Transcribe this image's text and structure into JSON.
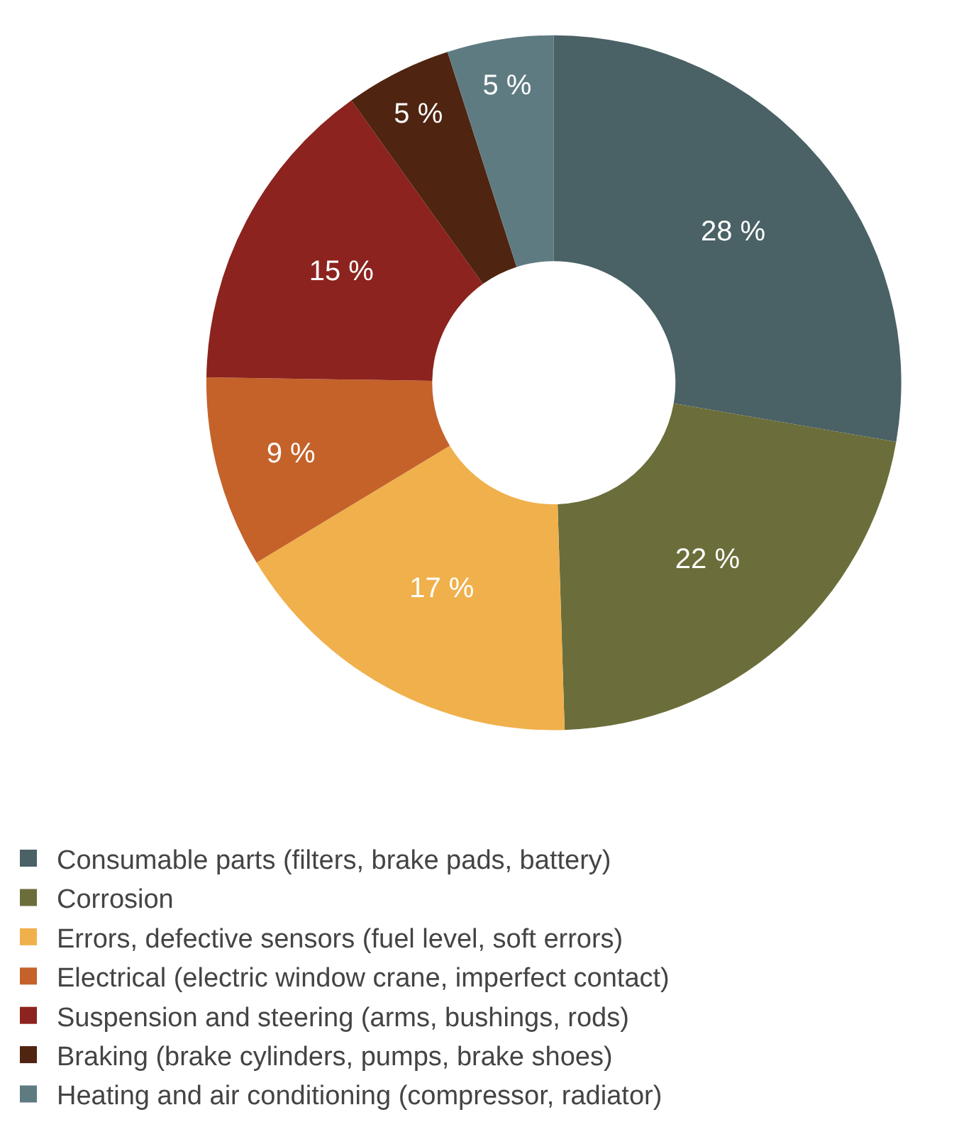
{
  "chart_data": {
    "type": "donut",
    "categories": [
      "Consumable parts (filters, brake pads, battery)",
      "Corrosion",
      "Errors, defective sensors (fuel level, soft errors)",
      "Electrical (electric window crane, imperfect contact)",
      "Suspension and steering (arms, bushings, rods)",
      "Braking (brake cylinders, pumps, brake shoes)",
      "Heating and air conditioning (compressor, radiator)"
    ],
    "values": [
      28,
      22,
      17,
      9,
      15,
      5,
      5
    ],
    "value_labels": [
      "28 %",
      "22 %",
      "17 %",
      "9 %",
      "15 %",
      "5 %",
      "5 %"
    ],
    "colors": [
      "#4a6165",
      "#6b6e3a",
      "#f0b04c",
      "#c4622a",
      "#8c231e",
      "#4f2410",
      "#5f7b82"
    ],
    "legend": "bottom"
  }
}
